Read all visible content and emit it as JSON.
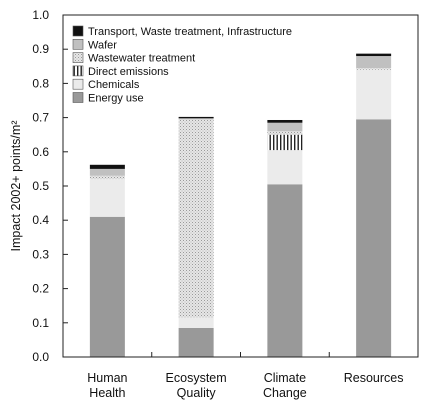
{
  "chart_data": {
    "type": "bar",
    "stacked": true,
    "title": "",
    "xlabel": "",
    "ylabel": "Impact 2002+ points/m²",
    "ylim": [
      0,
      1.0
    ],
    "yticks": [
      "0.0",
      "0.1",
      "0.2",
      "0.3",
      "0.4",
      "0.5",
      "0.6",
      "0.7",
      "0.8",
      "0.9",
      "1.0"
    ],
    "categories": [
      [
        "Human",
        "Health"
      ],
      [
        "Ecosystem",
        "Quality"
      ],
      [
        "Climate",
        "Change"
      ],
      [
        "Resources"
      ]
    ],
    "series": [
      {
        "name": "Energy use",
        "color": "#999999",
        "pattern": "solid",
        "values": [
          0.41,
          0.085,
          0.505,
          0.695
        ]
      },
      {
        "name": "Chemicals",
        "color": "#ebebeb",
        "pattern": "solid",
        "values": [
          0.11,
          0.03,
          0.1,
          0.145
        ]
      },
      {
        "name": "Direct emissions",
        "color": "#ffffff",
        "pattern": "vertical-lines",
        "values": [
          0.0,
          0.0,
          0.045,
          0.0
        ]
      },
      {
        "name": "Wastewater treatment",
        "color": "#e2e2e2",
        "pattern": "dots",
        "values": [
          0.01,
          0.58,
          0.01,
          0.005
        ]
      },
      {
        "name": "Wafer",
        "color": "#c0c0c0",
        "pattern": "solid",
        "values": [
          0.02,
          0.003,
          0.025,
          0.035
        ]
      },
      {
        "name": "Transport, Waste treatment, Infrastructure",
        "color": "#111111",
        "pattern": "solid",
        "values": [
          0.012,
          0.004,
          0.008,
          0.007
        ]
      }
    ],
    "legend": {
      "placement": "top-left",
      "order": [
        "Transport, Waste treatment, Infrastructure",
        "Wafer",
        "Wastewater treatment",
        "Direct emissions",
        "Chemicals",
        "Energy use"
      ]
    },
    "grid": false
  }
}
